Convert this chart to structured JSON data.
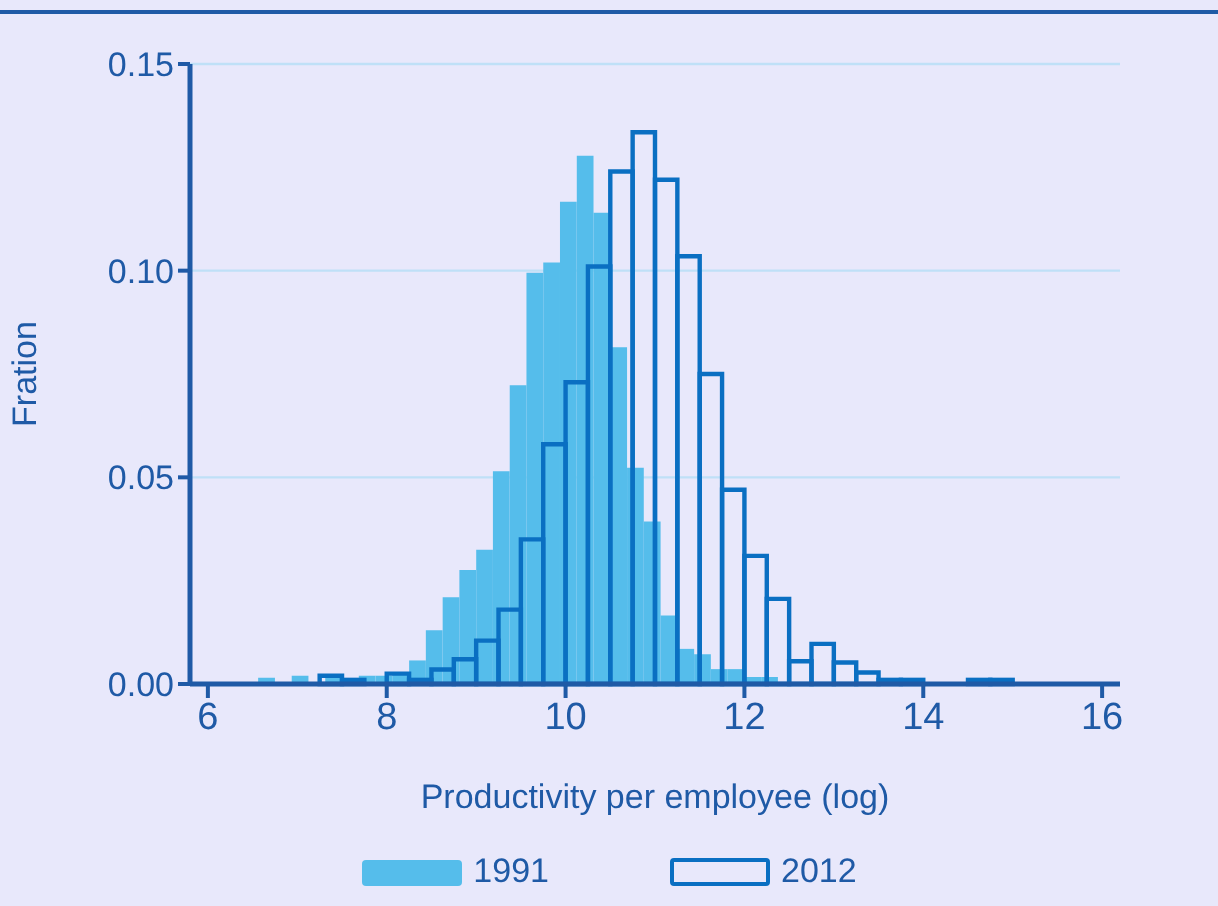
{
  "chart_data": {
    "type": "bar",
    "xlabel": "Productivity per employee (log)",
    "ylabel": "Fration",
    "xlim": [
      5.8,
      16.2
    ],
    "xticks": [
      6,
      8,
      10,
      12,
      14,
      16
    ],
    "ylim": [
      0,
      0.15
    ],
    "yticks": [
      {
        "value": 0,
        "label": "0.00"
      },
      {
        "value": 0.05,
        "label": "0.05"
      },
      {
        "value": 0.1,
        "label": "0.10"
      },
      {
        "value": 0.15,
        "label": "0.15"
      }
    ],
    "grid": "y",
    "legend": "bottom",
    "series": [
      {
        "name": "1991",
        "color": "#55bdeb",
        "x": [
          6.656,
          6.844,
          7.031,
          7.219,
          7.406,
          7.594,
          7.781,
          7.969,
          8.156,
          8.344,
          8.531,
          8.719,
          8.906,
          9.094,
          9.281,
          9.469,
          9.656,
          9.844,
          10.031,
          10.219,
          10.406,
          10.594,
          10.781,
          10.969,
          11.156,
          11.344,
          11.531,
          11.719,
          11.906,
          12.094,
          12.281
        ],
        "values": [
          0.0015,
          null,
          0.002,
          null,
          0.0015,
          null,
          0.002,
          0.002,
          0.0025,
          0.0057,
          0.013,
          0.021,
          0.0276,
          0.0325,
          0.0515,
          0.0723,
          0.0995,
          0.102,
          0.1167,
          0.1278,
          0.114,
          0.0815,
          0.0523,
          0.0393,
          0.0166,
          0.0085,
          0.0072,
          0.0036,
          0.0036,
          0.0017,
          0.0017
        ]
      },
      {
        "name": "2012",
        "color": "#0a6fc2",
        "x": [
          7.375,
          7.625,
          7.875,
          8.125,
          8.375,
          8.625,
          8.875,
          9.125,
          9.375,
          9.625,
          9.875,
          10.125,
          10.375,
          10.625,
          10.875,
          11.125,
          11.375,
          11.625,
          11.875,
          12.125,
          12.375,
          12.625,
          12.875,
          13.125,
          13.375,
          13.625,
          13.875,
          14.125,
          14.375,
          14.625,
          14.875
        ],
        "values": [
          0.002,
          0.001,
          null,
          0.0025,
          0.001,
          0.0035,
          0.006,
          0.0105,
          0.018,
          0.035,
          0.058,
          0.073,
          0.101,
          0.124,
          0.1335,
          0.122,
          0.1035,
          0.075,
          0.047,
          0.031,
          0.0206,
          0.0055,
          0.0097,
          0.0052,
          0.0028,
          0.001,
          0.001,
          null,
          null,
          0.001,
          0.001
        ]
      }
    ]
  }
}
